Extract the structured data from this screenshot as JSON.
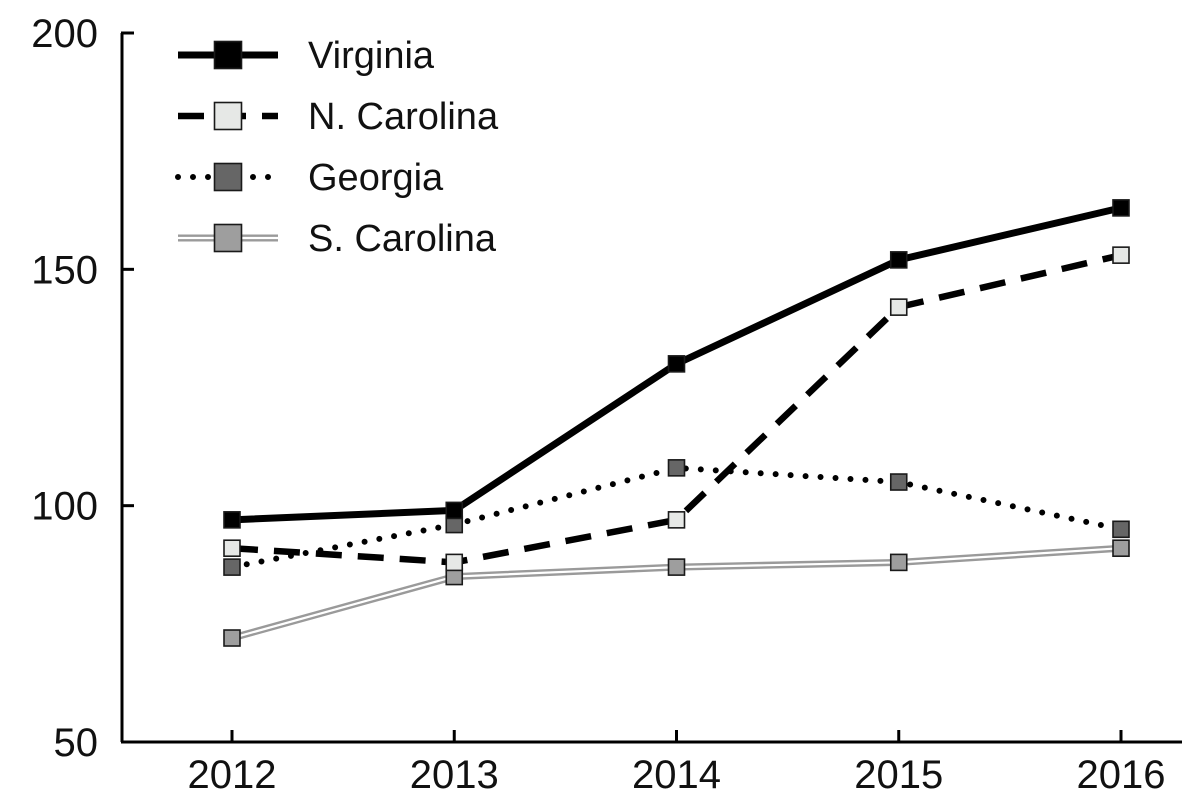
{
  "chart_data": {
    "type": "line",
    "title": "",
    "xlabel": "",
    "ylabel": "",
    "x": [
      2012,
      2013,
      2014,
      2015,
      2016
    ],
    "x_tick_labels": [
      "2012",
      "2013",
      "2014",
      "2015",
      "2016"
    ],
    "ylim": [
      50,
      200
    ],
    "y_ticks": [
      50,
      100,
      150,
      200
    ],
    "y_tick_labels": [
      "50",
      "100",
      "150",
      "200"
    ],
    "grid": false,
    "legend_position": "top-left",
    "series": [
      {
        "name": "Virginia",
        "values": [
          97,
          99,
          130,
          152,
          163
        ],
        "line_style": "solid-thick",
        "line_color": "#000000",
        "marker_color": "#000000"
      },
      {
        "name": "N. Carolina",
        "values": [
          91,
          88,
          97,
          142,
          153
        ],
        "line_style": "dashed",
        "line_color": "#000000",
        "marker_color": "#e6e8e6"
      },
      {
        "name": "Georgia",
        "values": [
          87,
          96,
          108,
          105,
          95
        ],
        "line_style": "dotted",
        "line_color": "#000000",
        "marker_color": "#666666"
      },
      {
        "name": "S. Carolina",
        "values": [
          72,
          85,
          87,
          88,
          91
        ],
        "line_style": "double",
        "line_color": "#9a9a9a",
        "marker_color": "#9e9e9e"
      }
    ]
  }
}
